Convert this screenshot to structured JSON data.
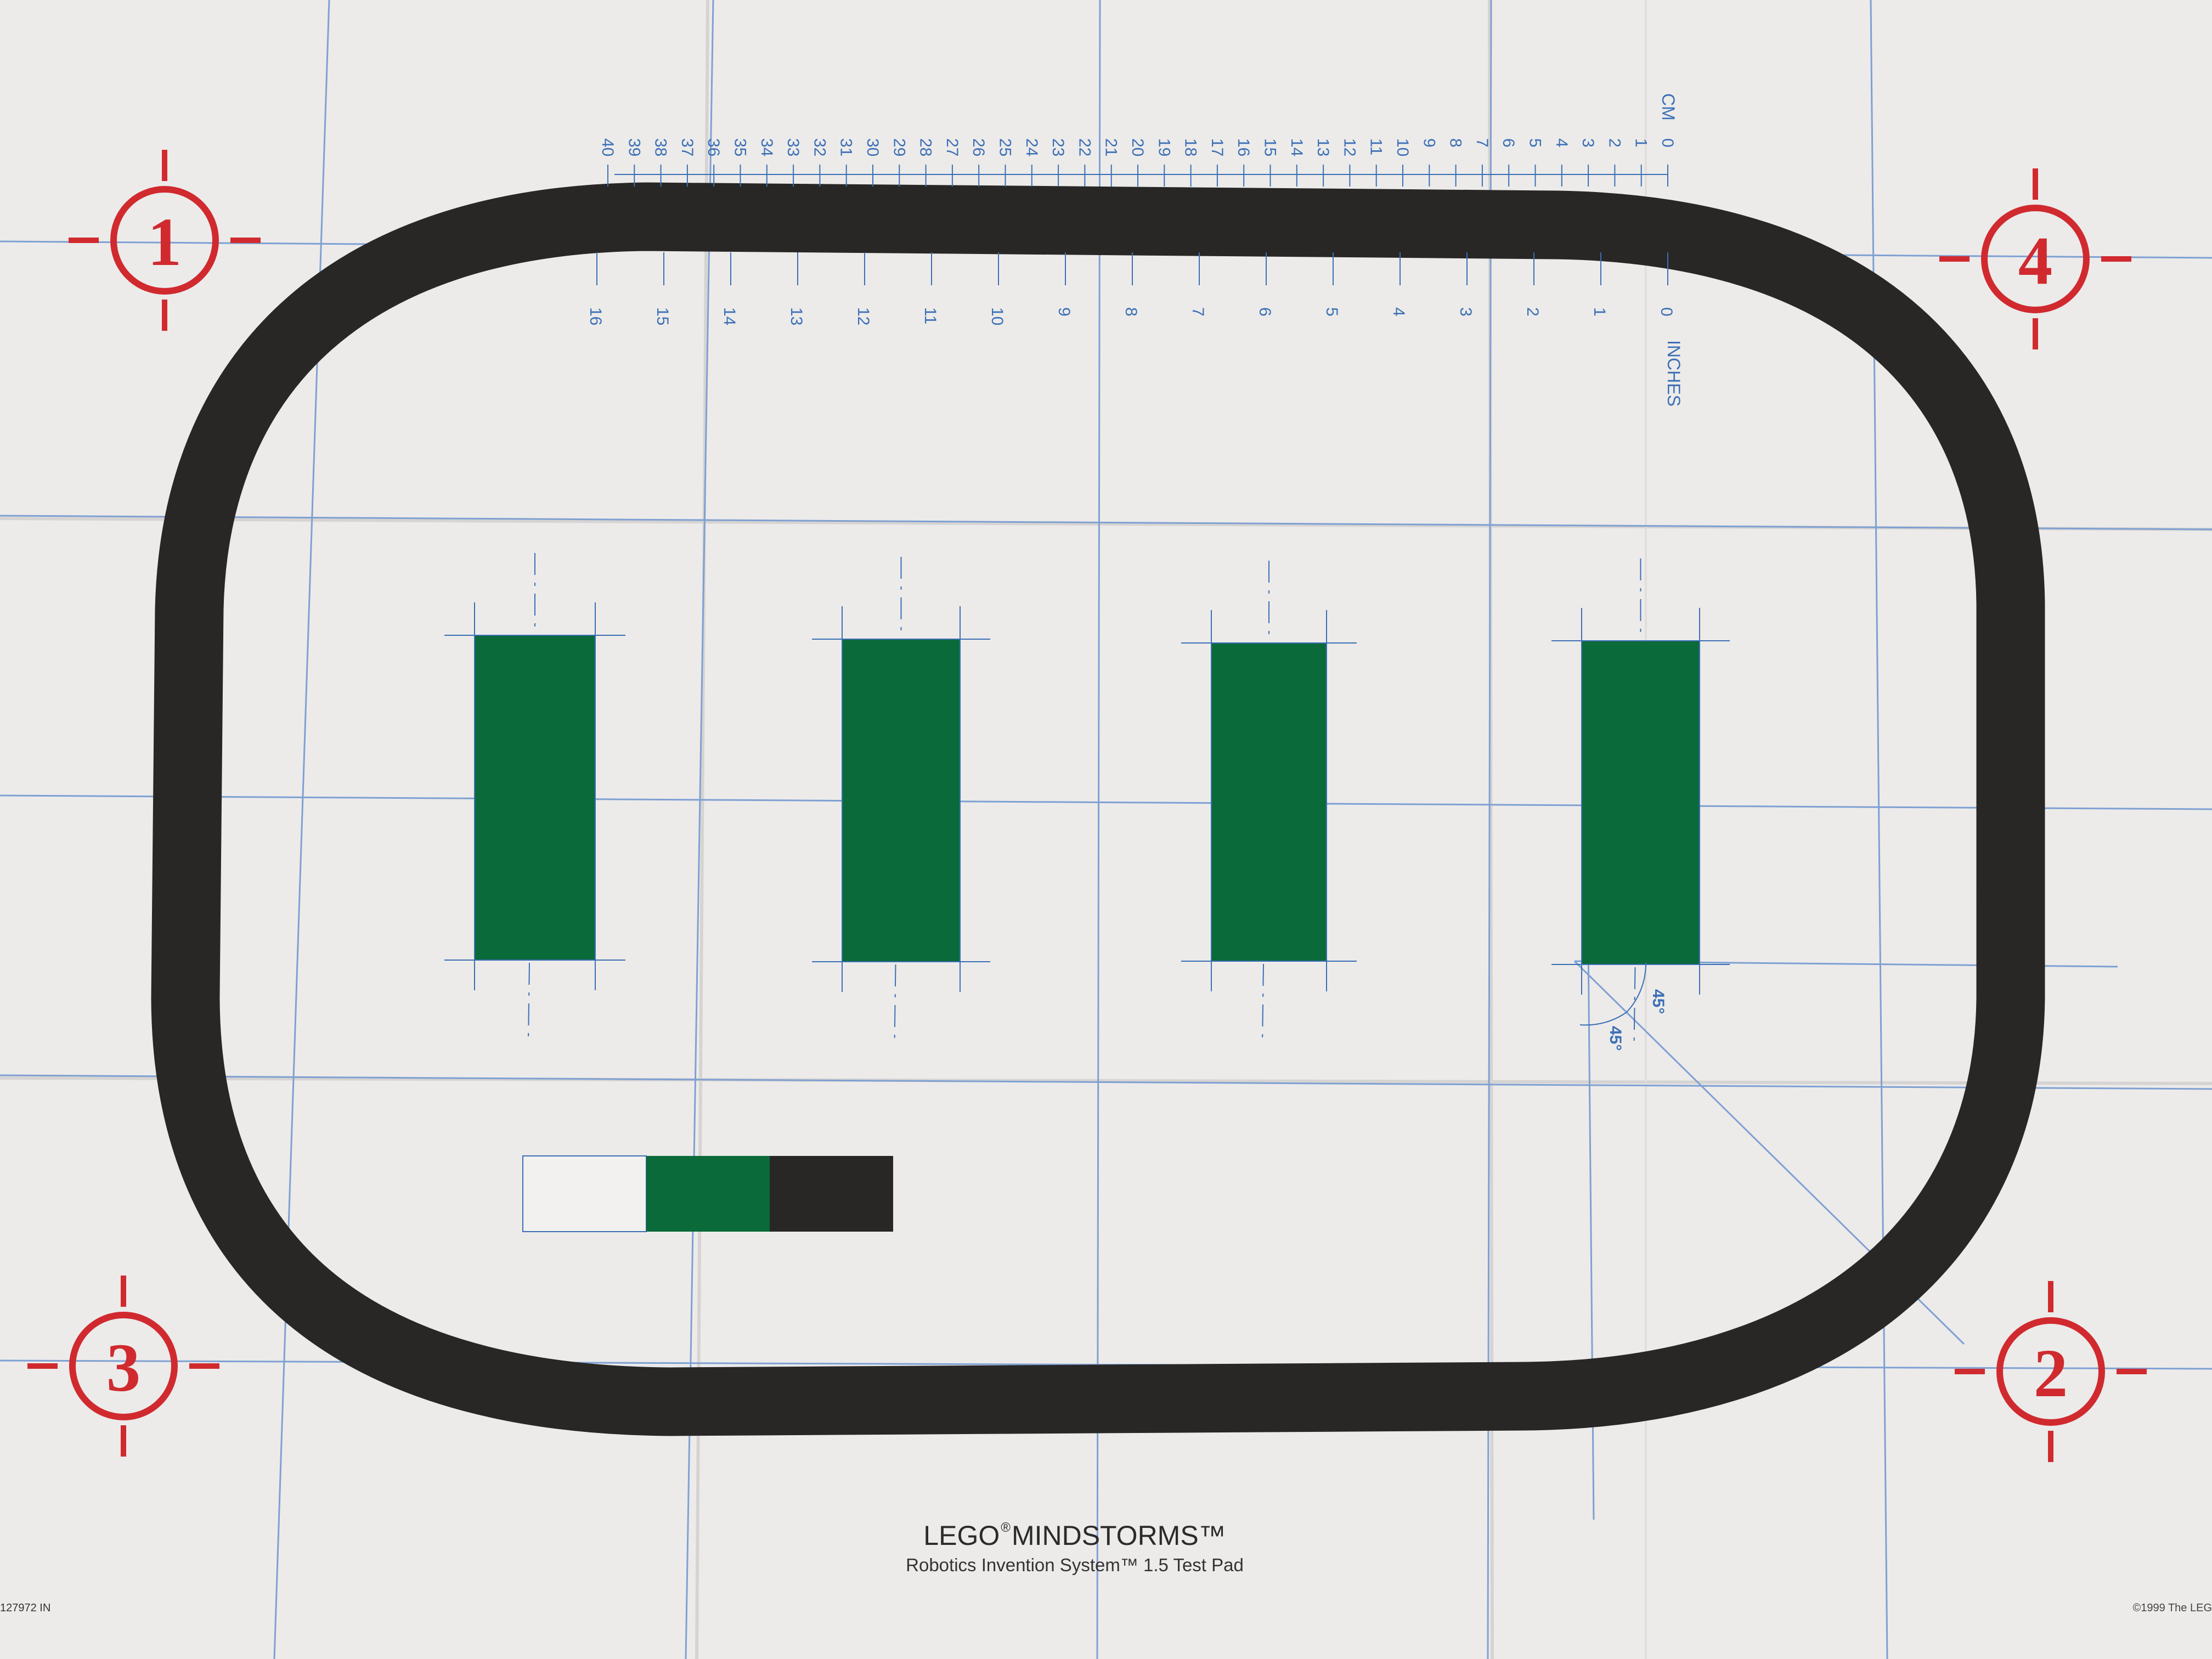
{
  "pad": {
    "brand": "LEGO",
    "registered": "®",
    "product": "MINDSTORMS™",
    "subtitle": "Robotics Invention System™ 1.5 Test Pad",
    "part_code": "127972 IN",
    "copyright": "©1999  The LEG"
  },
  "ruler": {
    "cm_label": "CM",
    "inches_label": "INCHES",
    "cm_ticks": [
      "0",
      "1",
      "2",
      "3",
      "4",
      "5",
      "6",
      "7",
      "8",
      "9",
      "10",
      "11",
      "12",
      "13",
      "14",
      "15",
      "16",
      "17",
      "18",
      "19",
      "20",
      "21",
      "22",
      "23",
      "24",
      "25",
      "26",
      "27",
      "28",
      "29",
      "30",
      "31",
      "32",
      "33",
      "34",
      "35",
      "36",
      "37",
      "38",
      "39",
      "40"
    ],
    "inch_ticks": [
      "0",
      "1",
      "2",
      "3",
      "4",
      "5",
      "6",
      "7",
      "8",
      "9",
      "10",
      "11",
      "12",
      "13",
      "14",
      "15",
      "16"
    ]
  },
  "markers": [
    {
      "id": "marker-1",
      "label": "1"
    },
    {
      "id": "marker-2",
      "label": "2"
    },
    {
      "id": "marker-3",
      "label": "3"
    },
    {
      "id": "marker-4",
      "label": "4"
    }
  ],
  "angles": {
    "a1": "45°",
    "a2": "45°"
  },
  "colors": {
    "paper": "#ecebea",
    "track": "#282726",
    "green": "#0a6a3a",
    "grid": "#6f93cc",
    "marker": "#d02a2f"
  },
  "swatches": [
    "white",
    "green",
    "black"
  ]
}
